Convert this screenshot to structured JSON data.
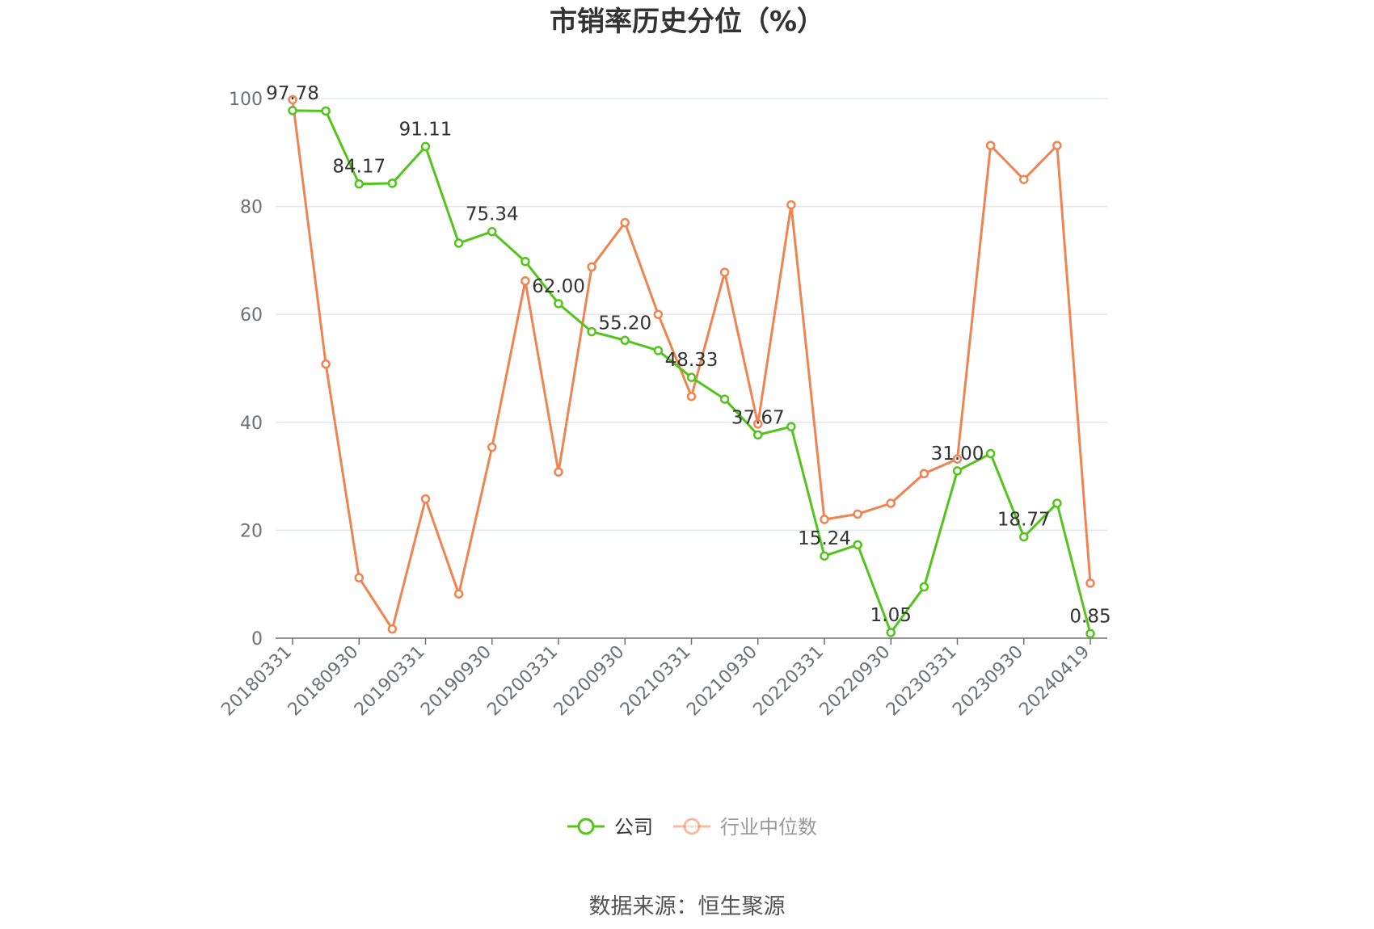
{
  "chart_data": {
    "type": "line",
    "title": "市销率历史分位（%）",
    "source": "数据来源：恒生聚源",
    "x_tick_labels": [
      "20180331",
      "20180930",
      "20190331",
      "20190930",
      "20200331",
      "20200930",
      "20210331",
      "20210930",
      "20220331",
      "20220930",
      "20230331",
      "20230930",
      "20240419"
    ],
    "ylim": [
      0,
      100
    ],
    "y_ticks": [
      0,
      20,
      40,
      60,
      80,
      100
    ],
    "grid": true,
    "legend_position": "bottom-center",
    "series": [
      {
        "name": "公司",
        "color": "#52c41a",
        "values": [
          97.78,
          97.7,
          84.17,
          84.3,
          91.11,
          73.2,
          75.34,
          69.8,
          62.0,
          56.8,
          55.2,
          53.3,
          48.33,
          44.3,
          37.67,
          39.2,
          15.24,
          17.3,
          1.05,
          9.5,
          31.0,
          34.2,
          18.77,
          25.0,
          0.85
        ],
        "labels": {
          "0": "97.78",
          "2": "84.17",
          "4": "91.11",
          "6": "75.34",
          "8": "62.00",
          "10": "55.20",
          "12": "48.33",
          "14": "37.67",
          "16": "15.24",
          "18": "1.05",
          "20": "31.00",
          "22": "18.77",
          "24": "0.85"
        }
      },
      {
        "name": "行业中位数",
        "color": "#f0834f",
        "values": [
          99.8,
          50.8,
          11.2,
          1.7,
          25.8,
          8.2,
          35.4,
          66.2,
          30.8,
          68.8,
          77.0,
          60.0,
          44.8,
          67.8,
          39.7,
          80.3,
          22.0,
          23.0,
          25.0,
          30.5,
          33.2,
          91.3,
          85.0,
          91.3,
          10.2
        ]
      }
    ]
  }
}
